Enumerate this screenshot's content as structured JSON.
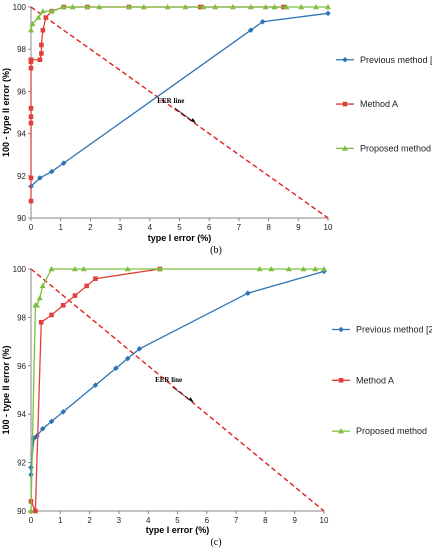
{
  "figure": {
    "panels": [
      {
        "caption": "(b)"
      },
      {
        "caption": "(c)"
      }
    ]
  },
  "chart_data": [
    {
      "type": "line",
      "title": "",
      "caption": "(b)",
      "xlabel": "type I error (%)",
      "ylabel": "100 - type II error (%)",
      "xlim": [
        0,
        10
      ],
      "ylim": [
        90,
        100
      ],
      "xticks": [
        0,
        1,
        2,
        3,
        4,
        5,
        6,
        7,
        8,
        9,
        10
      ],
      "yticks": [
        90,
        92,
        94,
        96,
        98,
        100
      ],
      "grid": false,
      "legend_position": "right",
      "series": [
        {
          "name": "Previous method [24]",
          "color": "#2e75b6",
          "marker": "diamond",
          "x": [
            0,
            0.3,
            0.7,
            1.1,
            7.4,
            7.8,
            10
          ],
          "y": [
            91.5,
            91.9,
            92.2,
            92.6,
            98.9,
            99.3,
            99.7
          ]
        },
        {
          "name": "Method A",
          "color": "#e0413a",
          "marker": "square",
          "x": [
            0,
            0,
            0,
            0,
            0,
            0,
            0,
            0,
            0,
            0.3,
            0.35,
            0.35,
            0.4,
            0.5,
            0.7,
            1.1,
            1.9,
            3.3,
            5.7,
            8.5
          ],
          "y": [
            90.8,
            91.9,
            94.5,
            94.8,
            95.2,
            97.1,
            97.4,
            97.5,
            97.5,
            97.5,
            97.8,
            98.2,
            98.9,
            99.5,
            99.8,
            100,
            100,
            100,
            100,
            100
          ]
        },
        {
          "name": "Proposed method",
          "color": "#7fbf3f",
          "marker": "triangle",
          "x": [
            0,
            0.05,
            0.25,
            0.4,
            0.7,
            1.1,
            1.4,
            1.9,
            2.3,
            3.3,
            3.8,
            4.6,
            5.2,
            5.8,
            6.2,
            6.8,
            7.4,
            7.9,
            8.2,
            8.6,
            9.1,
            9.6,
            10
          ],
          "y": [
            98.9,
            99.2,
            99.5,
            99.8,
            99.8,
            100,
            100,
            100,
            100,
            100,
            100,
            100,
            100,
            100,
            100,
            100,
            100,
            100,
            100,
            100,
            100,
            100,
            100
          ]
        }
      ],
      "reference_line": {
        "label": "EER line",
        "color": "#e02020",
        "style": "dashed",
        "x": [
          0,
          10
        ],
        "y": [
          100,
          90
        ]
      },
      "annotation": {
        "text": "EER line",
        "arrow_to": {
          "x": 5.55,
          "y": 94.5
        }
      }
    },
    {
      "type": "line",
      "title": "",
      "caption": "(c)",
      "xlabel": "type I error (%)",
      "ylabel": "100 - type II error (%)",
      "xlim": [
        0,
        10
      ],
      "ylim": [
        90,
        100
      ],
      "xticks": [
        0,
        1,
        2,
        3,
        4,
        5,
        6,
        7,
        8,
        9,
        10
      ],
      "yticks": [
        90,
        92,
        94,
        96,
        98,
        100
      ],
      "grid": false,
      "legend_position": "right",
      "series": [
        {
          "name": "Previous method [24]",
          "color": "#2e75b6",
          "marker": "diamond",
          "x": [
            0,
            0,
            0.1,
            0.2,
            0.4,
            0.7,
            1.1,
            2.2,
            2.9,
            3.3,
            3.7,
            7.4,
            10
          ],
          "y": [
            91.5,
            91.8,
            93.0,
            93.1,
            93.4,
            93.7,
            94.1,
            95.2,
            95.9,
            96.3,
            96.7,
            99.0,
            99.9
          ]
        },
        {
          "name": "Method A",
          "color": "#e0413a",
          "marker": "square",
          "x": [
            0,
            0.15,
            0.35,
            0.7,
            1.1,
            1.5,
            1.9,
            2.2,
            4.4
          ],
          "y": [
            90.4,
            90.0,
            97.8,
            98.1,
            98.5,
            98.9,
            99.3,
            99.6,
            100
          ]
        },
        {
          "name": "Proposed method",
          "color": "#7fbf3f",
          "marker": "triangle",
          "x": [
            0,
            0.15,
            0.2,
            0.3,
            0.4,
            0.7,
            1.5,
            1.8,
            3.3,
            4.4,
            7.8,
            8.2,
            8.8,
            9.3,
            9.7,
            10
          ],
          "y": [
            90.0,
            98.5,
            98.5,
            98.8,
            99.3,
            100,
            100,
            100,
            100,
            100,
            100,
            100,
            100,
            100,
            100,
            100
          ]
        }
      ],
      "reference_line": {
        "label": "EER line",
        "color": "#e02020",
        "style": "dashed",
        "x": [
          0,
          10
        ],
        "y": [
          100,
          90
        ]
      },
      "annotation": {
        "text": "EER line",
        "arrow_to": {
          "x": 5.55,
          "y": 94.5
        }
      }
    }
  ]
}
